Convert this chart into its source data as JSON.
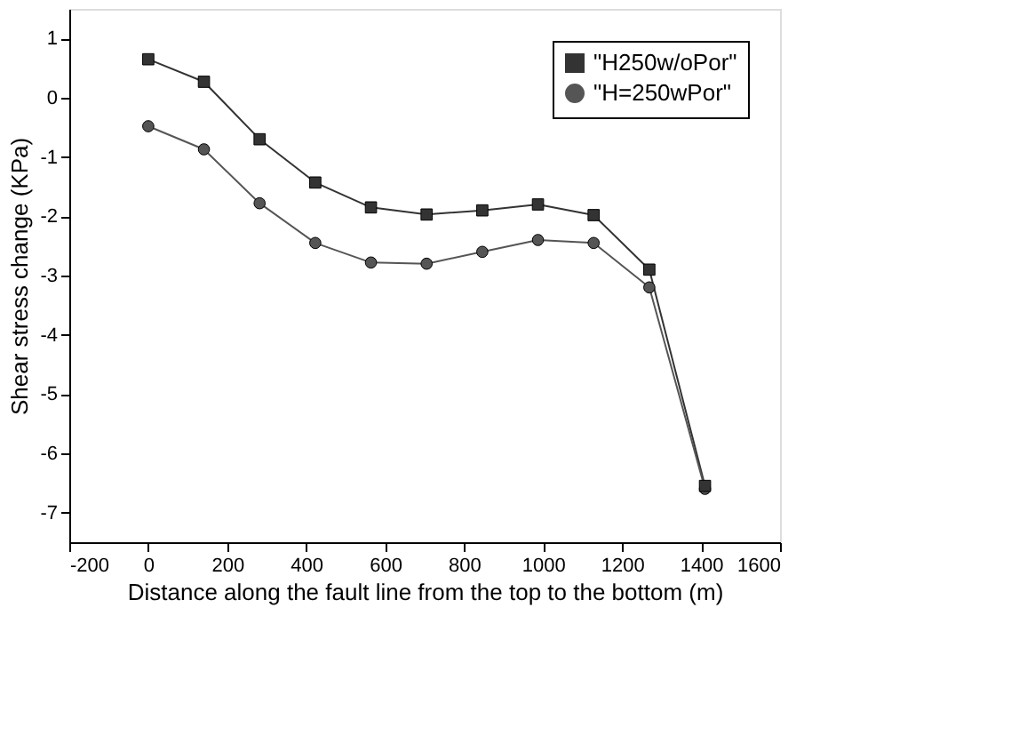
{
  "chart_data": {
    "type": "line",
    "xlabel": "Distance along the fault line from the top to the bottom (m)",
    "ylabel": "Shear stress change (KPa)",
    "x": [
      0,
      141,
      282,
      423,
      564,
      705,
      846,
      987,
      1128,
      1269,
      1410
    ],
    "series": [
      {
        "name": "\"H250w/oPor\"",
        "color": "#333333",
        "marker": "square",
        "values": [
          0.65,
          0.27,
          -0.7,
          -1.43,
          -1.85,
          -1.97,
          -1.9,
          -1.8,
          -1.98,
          -2.9,
          -6.55
        ]
      },
      {
        "name": "\"H=250wPor\"",
        "color": "#555555",
        "marker": "circle",
        "values": [
          -0.48,
          -0.87,
          -1.78,
          -2.45,
          -2.78,
          -2.8,
          -2.6,
          -2.4,
          -2.45,
          -3.2,
          -6.6
        ]
      }
    ],
    "xlim": [
      -200,
      1600
    ],
    "xticks": [
      -200,
      0,
      200,
      400,
      600,
      800,
      1000,
      1200,
      1400,
      1600
    ],
    "ylim": [
      -7.5,
      1.5
    ],
    "yticks": [
      -7,
      -6,
      -5,
      -4,
      -3,
      -2,
      -1,
      0,
      1
    ],
    "grid": false,
    "legend": "top right",
    "line_style": "solid"
  }
}
